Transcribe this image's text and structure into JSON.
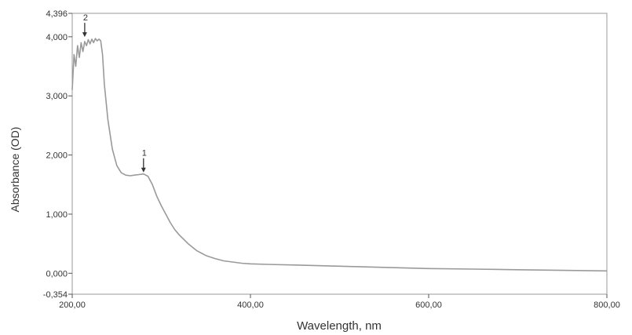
{
  "chart_data": {
    "type": "line",
    "title": "",
    "xlabel": "Wavelength, nm",
    "ylabel": "Absorbance (OD)",
    "xlim": [
      200,
      800
    ],
    "ylim": [
      -0.354,
      4.396
    ],
    "grid": false,
    "x_ticks": [
      {
        "value": 200,
        "label": "200,00"
      },
      {
        "value": 400,
        "label": "400,00"
      },
      {
        "value": 600,
        "label": "600,00"
      },
      {
        "value": 800,
        "label": "800,00"
      }
    ],
    "y_ticks": [
      {
        "value": -0.354,
        "label": "-0,354"
      },
      {
        "value": 0,
        "label": "0,000"
      },
      {
        "value": 1,
        "label": "1,000"
      },
      {
        "value": 2,
        "label": "2,000"
      },
      {
        "value": 3,
        "label": "3,000"
      },
      {
        "value": 4,
        "label": "4,000"
      },
      {
        "value": 4.396,
        "label": "4,396"
      }
    ],
    "series": [
      {
        "color": "#9a9a9a",
        "x": [
          200,
          202,
          204,
          206,
          208,
          210,
          212,
          214,
          216,
          218,
          220,
          222,
          224,
          226,
          228,
          230,
          232,
          234,
          236,
          240,
          245,
          250,
          255,
          260,
          265,
          270,
          275,
          280,
          285,
          290,
          295,
          300,
          305,
          310,
          315,
          320,
          330,
          340,
          350,
          360,
          370,
          380,
          390,
          400,
          420,
          450,
          500,
          550,
          600,
          650,
          700,
          750,
          800
        ],
        "values": [
          3.1,
          3.7,
          3.5,
          3.85,
          3.65,
          3.9,
          3.75,
          3.92,
          3.85,
          3.95,
          3.88,
          3.96,
          3.9,
          3.97,
          3.93,
          3.96,
          3.93,
          3.7,
          3.2,
          2.6,
          2.1,
          1.82,
          1.7,
          1.66,
          1.65,
          1.66,
          1.67,
          1.68,
          1.64,
          1.5,
          1.3,
          1.14,
          1.0,
          0.86,
          0.74,
          0.65,
          0.5,
          0.38,
          0.3,
          0.25,
          0.21,
          0.19,
          0.17,
          0.16,
          0.15,
          0.14,
          0.12,
          0.1,
          0.08,
          0.07,
          0.06,
          0.05,
          0.04
        ]
      }
    ],
    "annotations": [
      {
        "text": "1",
        "x": 280,
        "y": 1.68,
        "arrow": "down"
      },
      {
        "text": "2",
        "x": 214,
        "y": 3.97,
        "arrow": "down"
      }
    ]
  }
}
